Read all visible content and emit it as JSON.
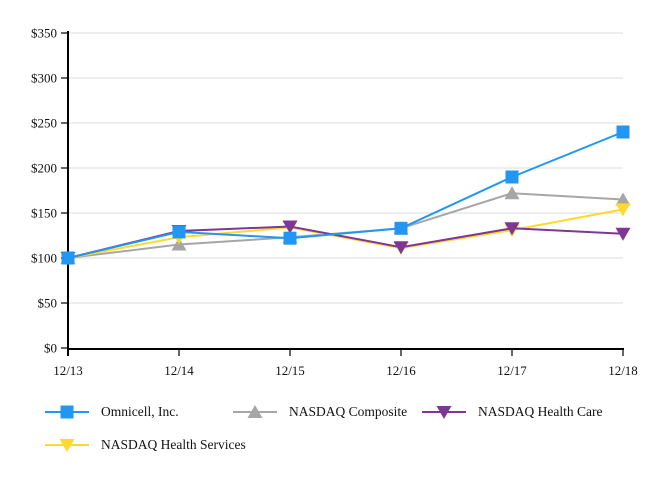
{
  "chart_data": {
    "type": "line",
    "title": "",
    "xlabel": "",
    "ylabel": "",
    "x": [
      "12/13",
      "12/14",
      "12/15",
      "12/16",
      "12/17",
      "12/18"
    ],
    "y_ticks": [
      "$0",
      "$50",
      "$100",
      "$150",
      "$200",
      "$250",
      "$300",
      "$350"
    ],
    "ylim": [
      0,
      350
    ],
    "grid": "horizontal-only",
    "legend_position": "bottom-left",
    "axis_color": "#000000",
    "gridline_color": "#DCDCDC",
    "series": [
      {
        "name": "Omnicell, Inc.",
        "marker": "square",
        "color": "#2196F3",
        "values": [
          100,
          129,
          122,
          133,
          190,
          240
        ]
      },
      {
        "name": "NASDAQ Composite",
        "marker": "triangle-up",
        "color": "#A6A6A6",
        "values": [
          100,
          115,
          123,
          133,
          172,
          165
        ]
      },
      {
        "name": "NASDAQ Health Care",
        "marker": "triangle-down",
        "color": "#7E3794",
        "values": [
          100,
          130,
          135,
          112,
          133,
          127
        ]
      },
      {
        "name": "NASDAQ Health Services",
        "marker": "triangle-down",
        "color": "#FFD92E",
        "values": [
          100,
          123,
          134,
          111,
          131,
          154
        ]
      }
    ]
  }
}
